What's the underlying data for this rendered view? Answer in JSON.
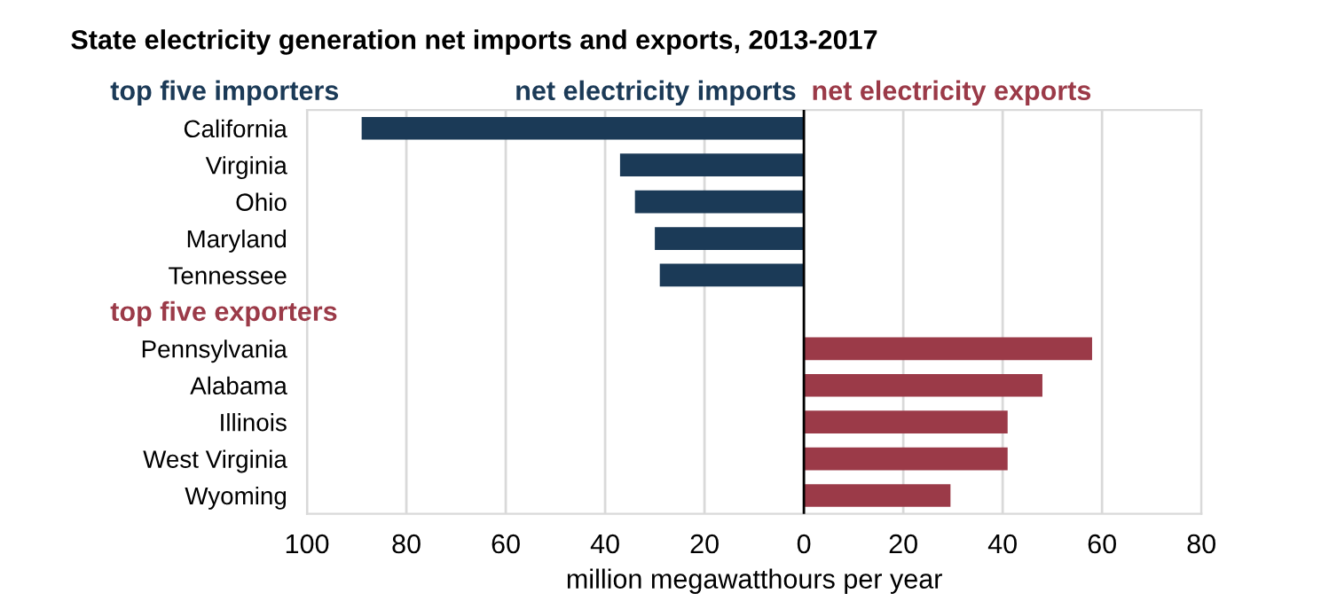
{
  "chart_data": {
    "type": "bar",
    "orientation": "horizontal",
    "title": "State electricity generation net imports and exports, 2013-2017",
    "xlabel": "million megawatthours per year",
    "categories": [
      "California",
      "Virginia",
      "Ohio",
      "Maryland",
      "Tennessee",
      null,
      "Pennsylvania",
      "Alabama",
      "Illinois",
      "West Virginia",
      "Wyoming"
    ],
    "series": [
      {
        "name": "net electricity imports",
        "color": "#1b3a57",
        "values": [
          -89,
          -37,
          -34,
          -30,
          -29,
          null,
          null,
          null,
          null,
          null,
          null
        ]
      },
      {
        "name": "net electricity exports",
        "color": "#9b3a48",
        "values": [
          null,
          null,
          null,
          null,
          null,
          null,
          58,
          48,
          41,
          41,
          29.5
        ]
      }
    ],
    "annotations": [
      "top five importers",
      "top five exporters"
    ],
    "xlim": [
      -100,
      80
    ],
    "xticks": [
      {
        "value": -100,
        "label": "100"
      },
      {
        "value": -80,
        "label": "80"
      },
      {
        "value": -60,
        "label": "60"
      },
      {
        "value": -40,
        "label": "40"
      },
      {
        "value": -20,
        "label": "20"
      },
      0,
      20,
      40,
      60,
      80
    ],
    "ref_lines": [
      {
        "axis": "x",
        "value": 0,
        "color": "#000000"
      }
    ],
    "grid": "x",
    "legend": false
  }
}
